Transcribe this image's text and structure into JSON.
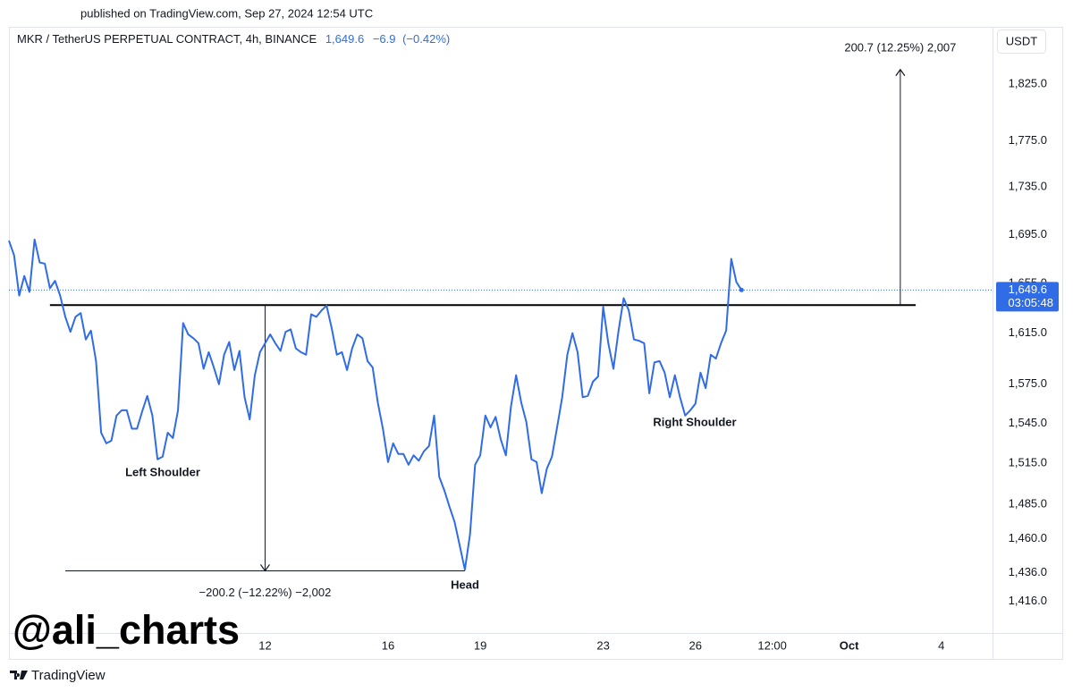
{
  "header": {
    "published": "published on TradingView.com, Sep 27, 2024 12:54 UTC",
    "symbol": "MKR / TetherUS PERPETUAL CONTRACT, 4h, BINANCE",
    "currency": "USDT"
  },
  "watermark": "@ali_charts",
  "brand": "TradingView",
  "chart_data": {
    "type": "line",
    "color": "#2f6ce5",
    "log_scale": true,
    "grid": false,
    "last_price": {
      "value": 1649.6,
      "label": "1,649.6"
    },
    "change": {
      "value": -6.9,
      "label": "−6.9"
    },
    "change_pct": {
      "value": -0.42,
      "label": "(−0.42%)"
    },
    "countdown": "03:05:48",
    "xlim": [
      "2024-09-03 16:00",
      "2024-10-05 16:00"
    ],
    "ylim": [
      1394,
      1877
    ],
    "yticks": [
      {
        "value": 1825,
        "label": "1,825.0"
      },
      {
        "value": 1775,
        "label": "1,775.0"
      },
      {
        "value": 1735,
        "label": "1,735.0"
      },
      {
        "value": 1695,
        "label": "1,695.0"
      },
      {
        "value": 1655,
        "label": "1,655.0"
      },
      {
        "value": 1615,
        "label": "1,615.0"
      },
      {
        "value": 1575,
        "label": "1,575.0"
      },
      {
        "value": 1545,
        "label": "1,545.0"
      },
      {
        "value": 1515,
        "label": "1,515.0"
      },
      {
        "value": 1485,
        "label": "1,485.0"
      },
      {
        "value": 1460,
        "label": "1,460.0"
      },
      {
        "value": 1436,
        "label": "1,436.0"
      },
      {
        "value": 1416,
        "label": "1,416.0"
      }
    ],
    "xticks": [
      {
        "value": "2024-09-12 00:00",
        "label": "12"
      },
      {
        "value": "2024-09-16 00:00",
        "label": "16"
      },
      {
        "value": "2024-09-19 00:00",
        "label": "19"
      },
      {
        "value": "2024-09-23 00:00",
        "label": "23"
      },
      {
        "value": "2024-09-26 00:00",
        "label": "26"
      },
      {
        "value": "2024-09-28 12:00",
        "label": "12:00"
      },
      {
        "value": "2024-10-01 00:00",
        "label": "Oct"
      },
      {
        "value": "2024-10-04 00:00",
        "label": "4"
      }
    ],
    "x": [
      "2024-09-03 16:00",
      "2024-09-03 20:00",
      "2024-09-04 00:00",
      "2024-09-04 04:00",
      "2024-09-04 08:00",
      "2024-09-04 12:00",
      "2024-09-04 16:00",
      "2024-09-04 20:00",
      "2024-09-05 00:00",
      "2024-09-05 04:00",
      "2024-09-05 08:00",
      "2024-09-05 12:00",
      "2024-09-05 16:00",
      "2024-09-05 20:00",
      "2024-09-06 00:00",
      "2024-09-06 04:00",
      "2024-09-06 08:00",
      "2024-09-06 12:00",
      "2024-09-06 16:00",
      "2024-09-06 20:00",
      "2024-09-07 00:00",
      "2024-09-07 04:00",
      "2024-09-07 08:00",
      "2024-09-07 12:00",
      "2024-09-07 16:00",
      "2024-09-07 20:00",
      "2024-09-08 00:00",
      "2024-09-08 04:00",
      "2024-09-08 08:00",
      "2024-09-08 12:00",
      "2024-09-08 16:00",
      "2024-09-08 20:00",
      "2024-09-09 00:00",
      "2024-09-09 04:00",
      "2024-09-09 08:00",
      "2024-09-09 12:00",
      "2024-09-09 16:00",
      "2024-09-09 20:00",
      "2024-09-10 00:00",
      "2024-09-10 04:00",
      "2024-09-10 08:00",
      "2024-09-10 12:00",
      "2024-09-10 16:00",
      "2024-09-10 20:00",
      "2024-09-11 00:00",
      "2024-09-11 04:00",
      "2024-09-11 08:00",
      "2024-09-11 12:00",
      "2024-09-11 16:00",
      "2024-09-11 20:00",
      "2024-09-12 00:00",
      "2024-09-12 04:00",
      "2024-09-12 08:00",
      "2024-09-12 12:00",
      "2024-09-12 16:00",
      "2024-09-12 20:00",
      "2024-09-13 00:00",
      "2024-09-13 04:00",
      "2024-09-13 08:00",
      "2024-09-13 12:00",
      "2024-09-13 16:00",
      "2024-09-13 20:00",
      "2024-09-14 00:00",
      "2024-09-14 04:00",
      "2024-09-14 08:00",
      "2024-09-14 12:00",
      "2024-09-14 16:00",
      "2024-09-14 20:00",
      "2024-09-15 00:00",
      "2024-09-15 04:00",
      "2024-09-15 08:00",
      "2024-09-15 12:00",
      "2024-09-15 16:00",
      "2024-09-15 20:00",
      "2024-09-16 00:00",
      "2024-09-16 04:00",
      "2024-09-16 08:00",
      "2024-09-16 12:00",
      "2024-09-16 16:00",
      "2024-09-16 20:00",
      "2024-09-17 00:00",
      "2024-09-17 04:00",
      "2024-09-17 08:00",
      "2024-09-17 12:00",
      "2024-09-17 16:00",
      "2024-09-17 20:00",
      "2024-09-18 00:00",
      "2024-09-18 04:00",
      "2024-09-18 08:00",
      "2024-09-18 12:00",
      "2024-09-18 16:00",
      "2024-09-18 20:00",
      "2024-09-19 00:00",
      "2024-09-19 04:00",
      "2024-09-19 08:00",
      "2024-09-19 12:00",
      "2024-09-19 16:00",
      "2024-09-19 20:00",
      "2024-09-20 00:00",
      "2024-09-20 04:00",
      "2024-09-20 08:00",
      "2024-09-20 12:00",
      "2024-09-20 16:00",
      "2024-09-20 20:00",
      "2024-09-21 00:00",
      "2024-09-21 04:00",
      "2024-09-21 08:00",
      "2024-09-21 12:00",
      "2024-09-21 16:00",
      "2024-09-21 20:00",
      "2024-09-22 00:00",
      "2024-09-22 04:00",
      "2024-09-22 08:00",
      "2024-09-22 12:00",
      "2024-09-22 16:00",
      "2024-09-22 20:00",
      "2024-09-23 00:00",
      "2024-09-23 04:00",
      "2024-09-23 08:00",
      "2024-09-23 12:00",
      "2024-09-23 16:00",
      "2024-09-23 20:00",
      "2024-09-24 00:00",
      "2024-09-24 04:00",
      "2024-09-24 08:00",
      "2024-09-24 12:00",
      "2024-09-24 16:00",
      "2024-09-24 20:00",
      "2024-09-25 00:00",
      "2024-09-25 04:00",
      "2024-09-25 08:00",
      "2024-09-25 12:00",
      "2024-09-25 16:00",
      "2024-09-25 20:00",
      "2024-09-26 00:00",
      "2024-09-26 04:00",
      "2024-09-26 08:00",
      "2024-09-26 12:00",
      "2024-09-26 16:00",
      "2024-09-26 20:00",
      "2024-09-27 00:00",
      "2024-09-27 04:00",
      "2024-09-27 08:00",
      "2024-09-27 12:00"
    ],
    "values": [
      1690,
      1678,
      1645,
      1661,
      1648,
      1691,
      1672,
      1671,
      1651,
      1657,
      1645,
      1628,
      1616,
      1628,
      1631,
      1610,
      1617,
      1593,
      1538,
      1530,
      1532,
      1551,
      1555,
      1555,
      1541,
      1541,
      1554,
      1566,
      1551,
      1518,
      1520,
      1538,
      1534,
      1555,
      1623,
      1614,
      1611,
      1607,
      1587,
      1600,
      1588,
      1575,
      1598,
      1608,
      1586,
      1601,
      1565,
      1548,
      1582,
      1600,
      1607,
      1614,
      1607,
      1601,
      1616,
      1618,
      1603,
      1600,
      1598,
      1630,
      1628,
      1633,
      1637,
      1619,
      1598,
      1600,
      1586,
      1603,
      1614,
      1611,
      1593,
      1588,
      1561,
      1541,
      1516,
      1530,
      1522,
      1522,
      1514,
      1521,
      1517,
      1524,
      1528,
      1551,
      1505,
      1495,
      1483,
      1472,
      1455,
      1438,
      1463,
      1514,
      1521,
      1551,
      1542,
      1550,
      1533,
      1521,
      1558,
      1582,
      1561,
      1546,
      1518,
      1516,
      1493,
      1511,
      1520,
      1542,
      1565,
      1598,
      1615,
      1600,
      1565,
      1566,
      1577,
      1581,
      1636,
      1607,
      1587,
      1617,
      1643,
      1633,
      1610,
      1609,
      1607,
      1568,
      1592,
      1593,
      1584,
      1565,
      1582,
      1565,
      1551,
      1555,
      1560,
      1584,
      1572,
      1598,
      1595,
      1607,
      1617,
      1675,
      1656,
      1649.6
    ],
    "annotations": {
      "neckline": {
        "value": 1637.4,
        "x": [
          "2024-09-05 00:00",
          "2024-10-03 04:00"
        ]
      },
      "head_line": {
        "value": 1437.2,
        "x": [
          "2024-09-05 12:00",
          "2024-09-18 12:00"
        ]
      },
      "down_measure": {
        "x": "2024-09-12 00:00",
        "from": 1637.4,
        "to": 1437.2,
        "label": "−200.2 (−12.22%) −2,002"
      },
      "up_measure": {
        "x": "2024-10-02 16:00",
        "from": 1637.4,
        "to": 1838.1,
        "label": "200.7 (12.25%) 2,007"
      },
      "pattern_labels": [
        "Left Shoulder",
        "Head",
        "Right Shoulder"
      ]
    }
  }
}
